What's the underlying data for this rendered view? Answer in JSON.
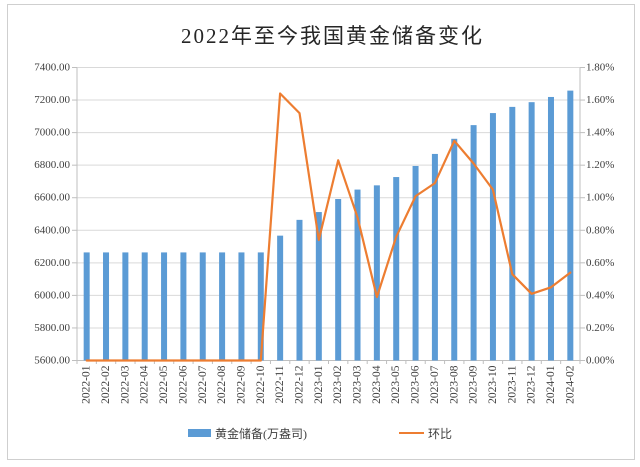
{
  "chart_data": {
    "type": "combo-bar-line",
    "title": "2022年至今我国黄金储备变化",
    "categories": [
      "2022-01",
      "2022-02",
      "2022-03",
      "2022-04",
      "2022-05",
      "2022-06",
      "2022-07",
      "2022-08",
      "2022-09",
      "2022-10",
      "2022-11",
      "2022-12",
      "2023-01",
      "2023-02",
      "2023-03",
      "2023-04",
      "2023-05",
      "2023-06",
      "2023-07",
      "2023-08",
      "2023-09",
      "2023-10",
      "2023-11",
      "2023-12",
      "2024-01",
      "2024-02"
    ],
    "series": [
      {
        "name": "黄金储备(万盎司)",
        "type": "bar",
        "axis": "left",
        "color": "#5B9BD5",
        "values": [
          6264,
          6264,
          6264,
          6264,
          6264,
          6264,
          6264,
          6264,
          6264,
          6264,
          6367,
          6464,
          6512,
          6592,
          6650,
          6676,
          6727,
          6795,
          6869,
          6962,
          7046,
          7120,
          7158,
          7187,
          7219,
          7258
        ]
      },
      {
        "name": "环比",
        "type": "line",
        "axis": "right",
        "color": "#ED7D31",
        "values": [
          0,
          0,
          0,
          0,
          0,
          0,
          0,
          0,
          0,
          0,
          1.64,
          1.52,
          0.74,
          1.23,
          0.88,
          0.39,
          0.76,
          1.01,
          1.09,
          1.35,
          1.21,
          1.05,
          0.53,
          0.41,
          0.45,
          0.54
        ]
      }
    ],
    "y_left": {
      "min": 5600,
      "max": 7400,
      "step": 200,
      "tick_labels": [
        "7400.00",
        "7200.00",
        "7000.00",
        "6800.00",
        "6600.00",
        "6400.00",
        "6200.00",
        "6000.00",
        "5800.00",
        "5600.00"
      ]
    },
    "y_right": {
      "min": 0,
      "max": 1.8,
      "step": 0.2,
      "tick_labels": [
        "1.80%",
        "1.60%",
        "1.40%",
        "1.20%",
        "1.00%",
        "0.80%",
        "0.60%",
        "0.40%",
        "0.20%",
        "0.00%"
      ]
    },
    "grid": "horizontal",
    "legend_position": "bottom",
    "colors": {
      "grid": "#D9D9D9",
      "axis": "#BFBFBF",
      "tick_text": "#404040",
      "title_text": "#262626",
      "frame_border": "#CFCFCF",
      "background": "#FFFFFF"
    }
  }
}
